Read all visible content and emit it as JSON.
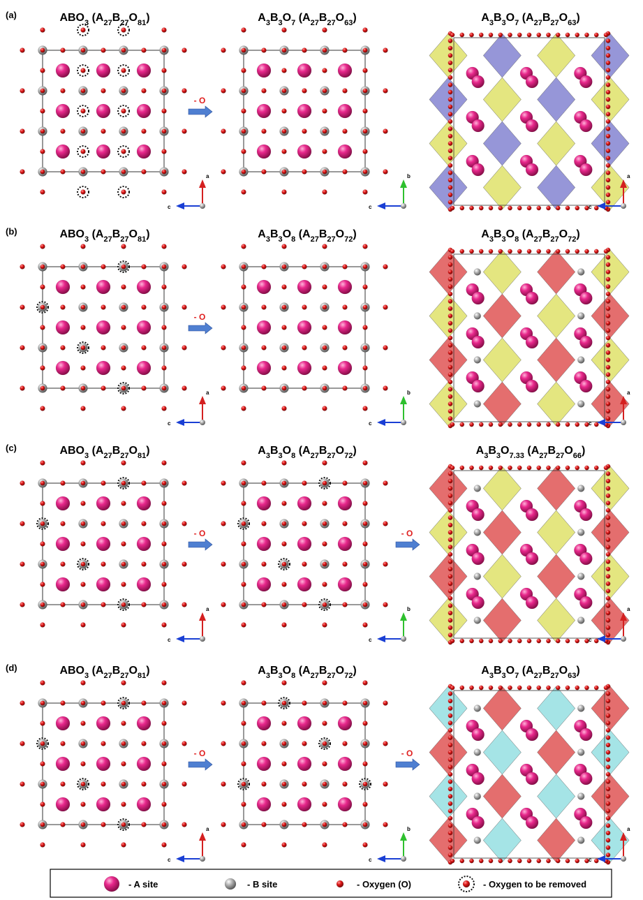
{
  "panels": [
    {
      "label": "(a)",
      "views": [
        {
          "formula_main": "ABO",
          "sub_main": "3",
          "formula_cell": [
            "A",
            "27",
            "B",
            "27",
            "O",
            "81"
          ],
          "type": "lattice",
          "removal": "a",
          "axes": [
            "a",
            "c"
          ],
          "axis_up_color": "#d42020",
          "axis_right_color": "#1a3fd4"
        },
        {
          "formula_main": "A",
          "sub_main": "3",
          "mid": "B",
          "sub_mid": "3",
          "tail": "O",
          "sub_tail": "7",
          "formula_cell": [
            "A",
            "27",
            "B",
            "27",
            "O",
            "63"
          ],
          "type": "lattice",
          "removal": "none",
          "axes": [
            "b",
            "c"
          ],
          "axis_up_color": "#2ec02e",
          "axis_right_color": "#1a3fd4"
        },
        {
          "formula_main": "A",
          "sub_main": "3",
          "mid": "B",
          "sub_mid": "3",
          "tail": "O",
          "sub_tail": "7",
          "formula_cell": [
            "A",
            "27",
            "B",
            "27",
            "O",
            "63"
          ],
          "type": "polyhedra",
          "axes": [
            "a",
            "c"
          ],
          "axis_up_color": "#d42020",
          "axis_right_color": "#1a3fd4"
        }
      ],
      "arrows": [
        "- O"
      ]
    },
    {
      "label": "(b)",
      "views": [
        {
          "formula_main": "ABO",
          "sub_main": "3",
          "formula_cell": [
            "A",
            "27",
            "B",
            "27",
            "O",
            "81"
          ],
          "type": "lattice",
          "removal": "b",
          "axes": [
            "a",
            "c"
          ],
          "axis_up_color": "#d42020",
          "axis_right_color": "#1a3fd4"
        },
        {
          "formula_main": "A",
          "sub_main": "3",
          "mid": "B",
          "sub_mid": "3",
          "tail": "O",
          "sub_tail": "8",
          "formula_cell": [
            "A",
            "27",
            "B",
            "27",
            "O",
            "72"
          ],
          "type": "lattice",
          "removal": "none",
          "axes": [
            "b",
            "c"
          ],
          "axis_up_color": "#2ec02e",
          "axis_right_color": "#1a3fd4"
        },
        {
          "formula_main": "A",
          "sub_main": "3",
          "mid": "B",
          "sub_mid": "3",
          "tail": "O",
          "sub_tail": "8",
          "formula_cell": [
            "A",
            "27",
            "B",
            "27",
            "O",
            "72"
          ],
          "type": "polyhedra",
          "axes": [
            "a",
            "c"
          ],
          "axis_up_color": "#d42020",
          "axis_right_color": "#1a3fd4"
        }
      ],
      "arrows": [
        "- O"
      ]
    },
    {
      "label": "(c)",
      "views": [
        {
          "formula_main": "ABO",
          "sub_main": "3",
          "formula_cell": [
            "A",
            "27",
            "B",
            "27",
            "O",
            "81"
          ],
          "type": "lattice",
          "removal": "b",
          "axes": [
            "a",
            "c"
          ],
          "axis_up_color": "#d42020",
          "axis_right_color": "#1a3fd4"
        },
        {
          "formula_main": "A",
          "sub_main": "3",
          "mid": "B",
          "sub_mid": "3",
          "tail": "O",
          "sub_tail": "8",
          "formula_cell": [
            "A",
            "27",
            "B",
            "27",
            "O",
            "72"
          ],
          "type": "lattice",
          "removal": "b",
          "axes": [
            "b",
            "c"
          ],
          "axis_up_color": "#2ec02e",
          "axis_right_color": "#1a3fd4"
        },
        {
          "formula_main": "A",
          "sub_main": "3",
          "mid": "B",
          "sub_mid": "3",
          "tail": "O",
          "sub_tail": "7.33",
          "formula_cell": [
            "A",
            "27",
            "B",
            "27",
            "O",
            "66"
          ],
          "type": "polyhedra",
          "axes": [
            "a",
            "c"
          ],
          "axis_up_color": "#d42020",
          "axis_right_color": "#1a3fd4"
        }
      ],
      "arrows": [
        "- O",
        "- O"
      ]
    },
    {
      "label": "(d)",
      "views": [
        {
          "formula_main": "ABO",
          "sub_main": "3",
          "formula_cell": [
            "A",
            "27",
            "B",
            "27",
            "O",
            "81"
          ],
          "type": "lattice",
          "removal": "b",
          "axes": [
            "a",
            "c"
          ],
          "axis_up_color": "#d42020",
          "axis_right_color": "#1a3fd4"
        },
        {
          "formula_main": "A",
          "sub_main": "3",
          "mid": "B",
          "sub_mid": "3",
          "tail": "O",
          "sub_tail": "8",
          "formula_cell": [
            "A",
            "27",
            "B",
            "27",
            "O",
            "72"
          ],
          "type": "lattice",
          "removal": "d",
          "axes": [
            "b",
            "c"
          ],
          "axis_up_color": "#2ec02e",
          "axis_right_color": "#1a3fd4"
        },
        {
          "formula_main": "A",
          "sub_main": "3",
          "mid": "B",
          "sub_mid": "3",
          "tail": "O",
          "sub_tail": "7",
          "formula_cell": [
            "A",
            "27",
            "B",
            "27",
            "O",
            "63"
          ],
          "type": "polyhedra",
          "axes": [
            "a",
            "c"
          ],
          "axis_up_color": "#d42020",
          "axis_right_color": "#1a3fd4"
        }
      ],
      "arrows": [
        "- O",
        "- O"
      ]
    }
  ],
  "legend": {
    "a_site": "- A site",
    "b_site": "- B site",
    "oxygen": "- Oxygen (O)",
    "removed": "- Oxygen to be removed"
  },
  "colors": {
    "a_site": "#e0187a",
    "b_site": "#9a9a9a",
    "oxygen": "#d81818",
    "arrow": "#4f7fd1",
    "poly_yellow": "#d8dc4a",
    "poly_red": "#d83030",
    "poly_blue": "#6a6ac8",
    "poly_cyan": "#7fd8dc"
  },
  "icons": [
    "a-site-sphere-icon",
    "b-site-sphere-icon",
    "oxygen-sphere-icon",
    "oxygen-removed-icon",
    "axis-triad-icon",
    "reaction-arrow-icon"
  ]
}
